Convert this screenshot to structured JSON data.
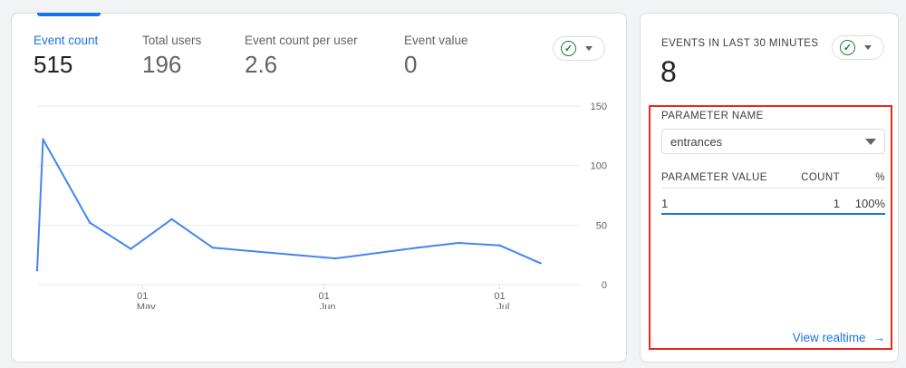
{
  "metrics": [
    {
      "label": "Event count",
      "value": "515",
      "active": true
    },
    {
      "label": "Total users",
      "value": "196"
    },
    {
      "label": "Event count per user",
      "value": "2.6"
    },
    {
      "label": "Event value",
      "value": "0"
    }
  ],
  "chart_data": {
    "type": "line",
    "x": [
      "2023-04-13",
      "2023-04-14",
      "2023-04-22",
      "2023-04-29",
      "2023-05-06",
      "2023-05-13",
      "2023-06-03",
      "2023-06-17",
      "2023-06-24",
      "2023-07-01",
      "2023-07-08"
    ],
    "series": [
      {
        "values": [
          12,
          122,
          52,
          30,
          55,
          31,
          22,
          31,
          35,
          33,
          18
        ],
        "color": "#4285f4"
      }
    ],
    "y_ticks": [
      "150",
      "100",
      "50",
      "0"
    ],
    "ylim": [
      0,
      150
    ],
    "x_ticks": [
      {
        "day": "01",
        "month": "May",
        "date": "2023-05-01"
      },
      {
        "day": "01",
        "month": "Jun",
        "date": "2023-06-01"
      },
      {
        "day": "01",
        "month": "Jul",
        "date": "2023-07-01"
      }
    ],
    "xlim": [
      "2023-04-13",
      "2023-07-13"
    ],
    "grid": true,
    "y_axis_side": "right"
  },
  "realtime": {
    "title": "EVENTS IN LAST 30 MINUTES",
    "value": "8",
    "param_label": "PARAMETER NAME",
    "param_selected": "entrances",
    "table": {
      "headers": [
        "PARAMETER VALUE",
        "COUNT",
        "%"
      ],
      "rows": [
        [
          "1",
          "1",
          "100%"
        ]
      ]
    },
    "link": "View realtime"
  },
  "colors": {
    "accent": "#1a73e8",
    "line": "#4285f4",
    "highlight": "#e8281e",
    "check": "#188038"
  }
}
